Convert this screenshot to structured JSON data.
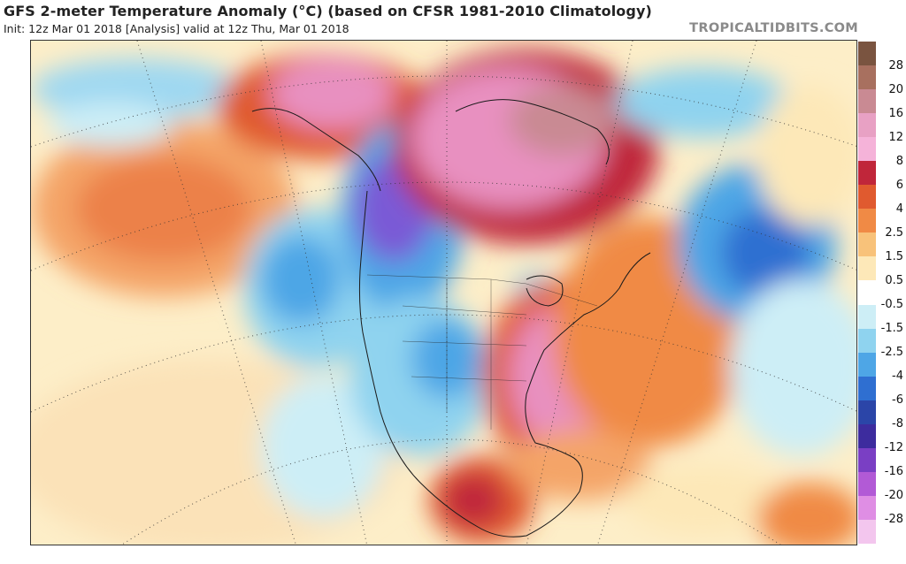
{
  "header": {
    "title": "GFS 2-meter Temperature Anomaly (°C) (based on CFSR 1981-2010 Climatology)",
    "subtitle": "Init: 12z Mar 01 2018   [Analysis]   valid at 12z Thu, Mar 01 2018",
    "brand": "TROPICALTIDBITS.COM"
  },
  "colorbar": {
    "labels": [
      "28",
      "20",
      "16",
      "12",
      "8",
      "6",
      "4",
      "2.5",
      "1.5",
      "0.5",
      "-0.5",
      "-1.5",
      "-2.5",
      "-4",
      "-6",
      "-8",
      "-12",
      "-16",
      "-20",
      "-28"
    ],
    "colors": [
      "#7a5440",
      "#a8705f",
      "#c98a93",
      "#e8a1c4",
      "#f5b3d9",
      "#c0263a",
      "#e05a2f",
      "#f08a45",
      "#f8c27a",
      "#fde8b8",
      "#ffffff",
      "#cdeef6",
      "#8fd3ef",
      "#4ea6e6",
      "#2f6fd1",
      "#2b45a8",
      "#3d2c9e",
      "#7a3fc4",
      "#b25ad6",
      "#df8ee4",
      "#f3c6ee"
    ]
  }
}
